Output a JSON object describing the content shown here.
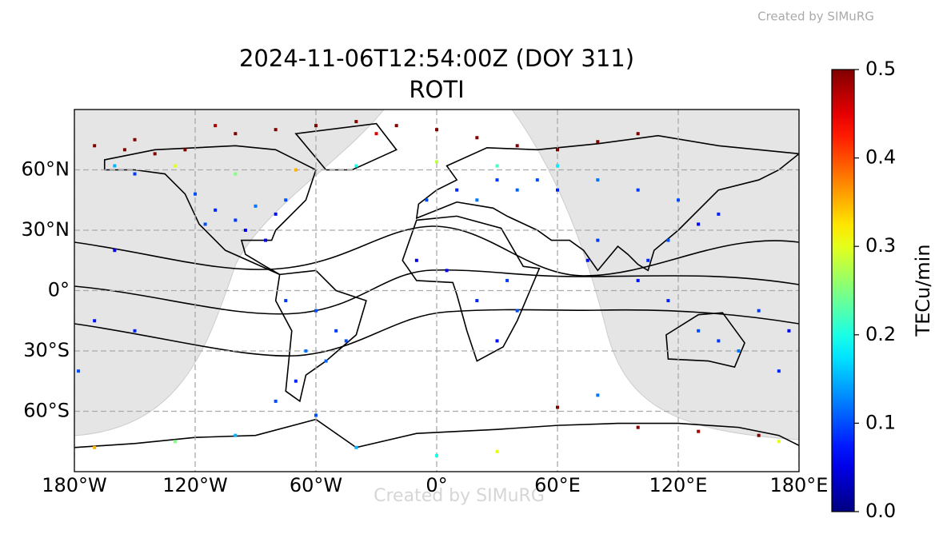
{
  "chart_data": {
    "type": "scatter",
    "title": "2024-11-06T12:54:00Z (DOY 311)",
    "subtitle": "ROTI",
    "watermarks": [
      "Created by SIMuRG",
      "Created by SIMuRG"
    ],
    "xlim": [
      -180,
      180
    ],
    "ylim": [
      -90,
      90
    ],
    "xticks": [
      {
        "value": -180,
        "label": "180°W"
      },
      {
        "value": -120,
        "label": "120°W"
      },
      {
        "value": -60,
        "label": "60°W"
      },
      {
        "value": 0,
        "label": "0°"
      },
      {
        "value": 60,
        "label": "60°E"
      },
      {
        "value": 120,
        "label": "120°E"
      },
      {
        "value": 180,
        "label": "180°E"
      }
    ],
    "yticks": [
      {
        "value": 60,
        "label": "60°N"
      },
      {
        "value": 30,
        "label": "30°N"
      },
      {
        "value": 0,
        "label": "0°"
      },
      {
        "value": -30,
        "label": "30°S"
      },
      {
        "value": -60,
        "label": "60°S"
      }
    ],
    "grid": true,
    "colormap": "jet",
    "clim": [
      0,
      0.5
    ],
    "cticks": [
      {
        "value": 0,
        "label": "0.0"
      },
      0.1,
      0.2,
      0.3,
      0.4,
      0.5
    ],
    "colorbar_label": "TECu/min",
    "x": [
      -170,
      -155,
      -140,
      -125,
      -100,
      -80,
      -60,
      -40,
      -20,
      0,
      20,
      40,
      60,
      80,
      100,
      -150,
      -110,
      -30,
      -130,
      -100,
      -70,
      -40,
      0,
      30,
      60,
      -160,
      -120,
      -110,
      -100,
      -90,
      -80,
      -75,
      -95,
      -115,
      -85,
      -150,
      -160,
      -5,
      10,
      20,
      30,
      40,
      50,
      60,
      80,
      100,
      120,
      140,
      130,
      115,
      105,
      100,
      80,
      75,
      5,
      20,
      30,
      35,
      -10,
      40,
      -60,
      -50,
      -45,
      -65,
      -70,
      -75,
      -55,
      -80,
      140,
      130,
      150,
      170,
      175,
      -170,
      -150,
      -178,
      115,
      160,
      100,
      130,
      160,
      170,
      -170,
      -130,
      -100,
      -60,
      60,
      30,
      0,
      -40,
      80
    ],
    "y": [
      72,
      70,
      68,
      70,
      78,
      80,
      82,
      84,
      82,
      80,
      76,
      72,
      70,
      74,
      78,
      75,
      82,
      78,
      62,
      58,
      60,
      62,
      64,
      62,
      62,
      62,
      48,
      40,
      35,
      42,
      38,
      45,
      30,
      33,
      25,
      58,
      20,
      45,
      50,
      45,
      55,
      50,
      55,
      50,
      55,
      50,
      45,
      38,
      33,
      25,
      15,
      5,
      25,
      15,
      10,
      -5,
      -25,
      5,
      15,
      -10,
      -10,
      -20,
      -25,
      -30,
      -45,
      -5,
      -35,
      -55,
      -25,
      -20,
      -30,
      -40,
      -20,
      -15,
      -20,
      -40,
      -5,
      -10,
      -68,
      -70,
      -72,
      -75,
      -78,
      -75,
      -72,
      -62,
      -58,
      -80,
      -82,
      -78,
      -52
    ],
    "values": [
      0.5,
      0.5,
      0.5,
      0.5,
      0.5,
      0.5,
      0.5,
      0.5,
      0.5,
      0.5,
      0.5,
      0.5,
      0.5,
      0.5,
      0.5,
      0.5,
      0.48,
      0.45,
      0.3,
      0.25,
      0.35,
      0.2,
      0.28,
      0.22,
      0.18,
      0.15,
      0.1,
      0.08,
      0.09,
      0.12,
      0.07,
      0.1,
      0.06,
      0.1,
      0.05,
      0.09,
      0.06,
      0.1,
      0.08,
      0.12,
      0.09,
      0.11,
      0.1,
      0.08,
      0.12,
      0.09,
      0.1,
      0.08,
      0.06,
      0.1,
      0.08,
      0.07,
      0.09,
      0.07,
      0.06,
      0.08,
      0.07,
      0.09,
      0.05,
      0.1,
      0.1,
      0.09,
      0.1,
      0.12,
      0.08,
      0.09,
      0.11,
      0.1,
      0.09,
      0.1,
      0.12,
      0.08,
      0.06,
      0.07,
      0.08,
      0.1,
      0.08,
      0.09,
      0.5,
      0.48,
      0.5,
      0.3,
      0.35,
      0.25,
      0.15,
      0.1,
      0.5,
      0.3,
      0.2,
      0.15,
      0.12
    ]
  }
}
